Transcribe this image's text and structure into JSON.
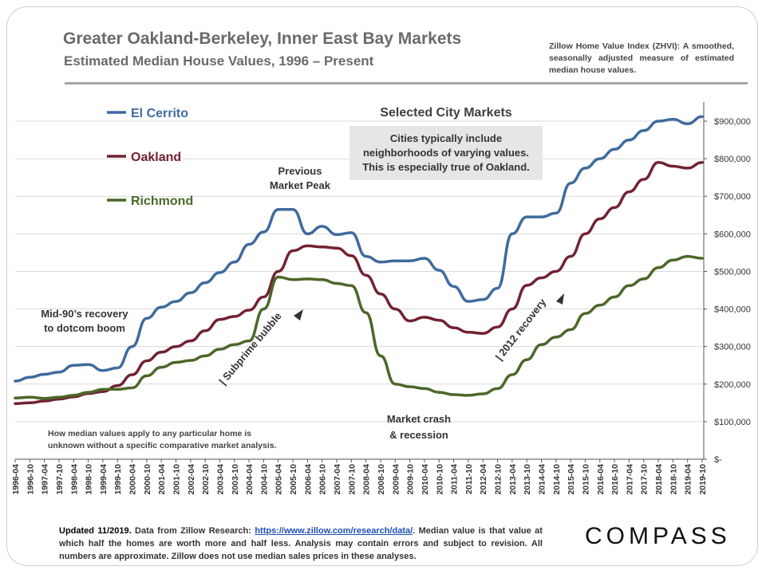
{
  "header": {
    "title": "Greater Oakland-Berkeley, Inner East Bay Markets",
    "subtitle": "Estimated Median House Values, 1996 – Present",
    "zhvi_note": "Zillow Home Value Index (ZHVI): A smoothed, seasonally adjusted measure of estimated median house values."
  },
  "colors": {
    "el_cerrito": "#3e6b9e",
    "oakland": "#722232",
    "richmond": "#4c6728",
    "annotation_box": "#e7e6e6",
    "gridline": "#d9d9d9",
    "rule": "#a6a6a6"
  },
  "annotations": {
    "selected_markets": "Selected City Markets",
    "box_lines": [
      "Cities typically include",
      "neighborhoods of varying values.",
      "This is especially true of Oakland."
    ],
    "previous_peak": [
      "Previous",
      "Market Peak"
    ],
    "mid90s": [
      "Mid-90’s recovery",
      "to dotcom boom"
    ],
    "subprime": "| Subprime bubble",
    "recovery_2012": "| 2012 recovery",
    "crash": [
      "Market crash",
      "& recession"
    ],
    "note": [
      "How median values apply to any particular home is",
      "unknown without a specific comparative market analysis."
    ]
  },
  "footer": {
    "updated": "Updated 11/2019.",
    "source_prefix": " Data from Zillow Research: ",
    "link": "https://www.zillow.com/research/data/",
    "rest": ". Median value is that value at which half the homes are worth more and half less. Analysis may contain errors and subject to revision. All numbers are approximate. Zillow does not use median sales prices in these analyses."
  },
  "logo": "COMPASS",
  "chart_data": {
    "type": "line",
    "title": "Selected City Markets",
    "xlabel": "",
    "ylabel": "",
    "ylim": [
      0,
      900000
    ],
    "yticks": [
      0,
      100000,
      200000,
      300000,
      400000,
      500000,
      600000,
      700000,
      800000,
      900000
    ],
    "ytick_labels": [
      "$-",
      "$100,000",
      "$200,000",
      "$300,000",
      "$400,000",
      "$500,000",
      "$600,000",
      "$700,000",
      "$800,000",
      "$900,000"
    ],
    "grid": true,
    "legend": "left",
    "x_start": "1996-04",
    "x_end": "2019-10",
    "x_tick_labels": [
      "1996-04",
      "1996-10",
      "1997-04",
      "1997-10",
      "1998-04",
      "1998-10",
      "1999-04",
      "1999-10",
      "2000-04",
      "2000-10",
      "2001-04",
      "2001-10",
      "2002-04",
      "2002-10",
      "2003-04",
      "2003-10",
      "2004-04",
      "2004-10",
      "2005-04",
      "2005-10",
      "2006-04",
      "2006-10",
      "2007-04",
      "2007-10",
      "2008-04",
      "2008-10",
      "2009-04",
      "2009-10",
      "2010-04",
      "2010-10",
      "2011-04",
      "2011-10",
      "2012-04",
      "2012-10",
      "2013-04",
      "2013-10",
      "2014-04",
      "2014-10",
      "2015-04",
      "2015-10",
      "2016-04",
      "2016-10",
      "2017-04",
      "2017-10",
      "2018-04",
      "2018-10",
      "2019-04",
      "2019-10"
    ],
    "series": [
      {
        "name": "El Cerrito",
        "x": [
          "1996-04",
          "1996-10",
          "1997-04",
          "1997-10",
          "1998-04",
          "1998-10",
          "1999-04",
          "1999-10",
          "2000-04",
          "2000-10",
          "2001-04",
          "2001-10",
          "2002-04",
          "2002-10",
          "2003-04",
          "2003-10",
          "2004-04",
          "2004-10",
          "2005-04",
          "2005-10",
          "2006-04",
          "2006-10",
          "2007-04",
          "2007-10",
          "2008-04",
          "2008-10",
          "2009-04",
          "2009-10",
          "2010-04",
          "2010-10",
          "2011-04",
          "2011-10",
          "2012-04",
          "2012-10",
          "2013-04",
          "2013-10",
          "2014-04",
          "2014-10",
          "2015-04",
          "2015-10",
          "2016-04",
          "2016-10",
          "2017-04",
          "2017-10",
          "2018-04",
          "2018-10",
          "2019-04",
          "2019-10"
        ],
        "values": [
          208000,
          218000,
          226000,
          232000,
          250000,
          252000,
          236000,
          243000,
          300000,
          375000,
          405000,
          420000,
          443000,
          470000,
          497000,
          525000,
          572000,
          605000,
          665000,
          665000,
          600000,
          620000,
          598000,
          603000,
          540000,
          525000,
          528000,
          528000,
          535000,
          503000,
          460000,
          420000,
          425000,
          455000,
          600000,
          645000,
          645000,
          655000,
          735000,
          775000,
          800000,
          825000,
          850000,
          875000,
          900000,
          905000,
          893000,
          912000
        ]
      },
      {
        "name": "Oakland",
        "x": [
          "1996-04",
          "1996-10",
          "1997-04",
          "1997-10",
          "1998-04",
          "1998-10",
          "1999-04",
          "1999-10",
          "2000-04",
          "2000-10",
          "2001-04",
          "2001-10",
          "2002-04",
          "2002-10",
          "2003-04",
          "2003-10",
          "2004-04",
          "2004-10",
          "2005-04",
          "2005-10",
          "2006-04",
          "2006-10",
          "2007-04",
          "2007-10",
          "2008-04",
          "2008-10",
          "2009-04",
          "2009-10",
          "2010-04",
          "2010-10",
          "2011-04",
          "2011-10",
          "2012-04",
          "2012-10",
          "2013-04",
          "2013-10",
          "2014-04",
          "2014-10",
          "2015-04",
          "2015-10",
          "2016-04",
          "2016-10",
          "2017-04",
          "2017-10",
          "2018-04",
          "2018-10",
          "2019-04",
          "2019-10"
        ],
        "values": [
          148000,
          150000,
          155000,
          160000,
          166000,
          175000,
          180000,
          196000,
          225000,
          262000,
          285000,
          300000,
          315000,
          342000,
          372000,
          380000,
          397000,
          432000,
          500000,
          555000,
          568000,
          565000,
          562000,
          542000,
          490000,
          440000,
          400000,
          368000,
          378000,
          370000,
          350000,
          338000,
          335000,
          352000,
          400000,
          463000,
          483000,
          500000,
          540000,
          600000,
          640000,
          670000,
          712000,
          745000,
          790000,
          780000,
          775000,
          790000
        ]
      },
      {
        "name": "Richmond",
        "x": [
          "1996-04",
          "1996-10",
          "1997-04",
          "1997-10",
          "1998-04",
          "1998-10",
          "1999-04",
          "1999-10",
          "2000-04",
          "2000-10",
          "2001-04",
          "2001-10",
          "2002-04",
          "2002-10",
          "2003-04",
          "2003-10",
          "2004-04",
          "2004-10",
          "2005-04",
          "2005-10",
          "2006-04",
          "2006-10",
          "2007-04",
          "2007-10",
          "2008-04",
          "2008-10",
          "2009-04",
          "2009-10",
          "2010-04",
          "2010-10",
          "2011-04",
          "2011-10",
          "2012-04",
          "2012-10",
          "2013-04",
          "2013-10",
          "2014-04",
          "2014-10",
          "2015-04",
          "2015-10",
          "2016-04",
          "2016-10",
          "2017-04",
          "2017-10",
          "2018-04",
          "2018-10",
          "2019-04",
          "2019-10"
        ],
        "values": [
          163000,
          165000,
          162000,
          165000,
          170000,
          178000,
          186000,
          186000,
          190000,
          222000,
          245000,
          258000,
          263000,
          275000,
          293000,
          305000,
          315000,
          400000,
          485000,
          478000,
          480000,
          478000,
          468000,
          462000,
          390000,
          275000,
          200000,
          193000,
          188000,
          178000,
          172000,
          170000,
          174000,
          188000,
          225000,
          265000,
          305000,
          325000,
          345000,
          388000,
          410000,
          432000,
          462000,
          480000,
          510000,
          530000,
          540000,
          535000
        ]
      }
    ]
  }
}
